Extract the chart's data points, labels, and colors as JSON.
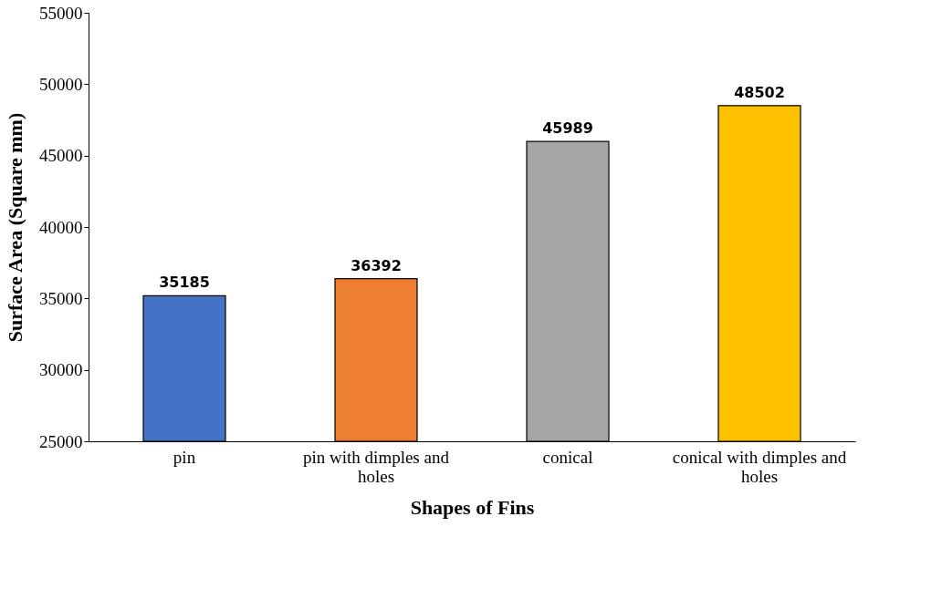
{
  "chart_data": {
    "type": "bar",
    "categories": [
      "pin",
      "pin with dimples and holes",
      "conical",
      "conical with dimples and holes"
    ],
    "values": [
      35185,
      36392,
      45989,
      48502
    ],
    "colors": [
      "#4472c4",
      "#ed7d31",
      "#a5a5a5",
      "#ffc000"
    ],
    "xlabel": "Shapes of Fins",
    "ylabel": "Surface Area (Square mm)",
    "ylim": [
      25000,
      55000
    ],
    "yticks": [
      25000,
      30000,
      35000,
      40000,
      45000,
      50000,
      55000
    ],
    "grid": false,
    "legend": false,
    "data_labels": true
  }
}
